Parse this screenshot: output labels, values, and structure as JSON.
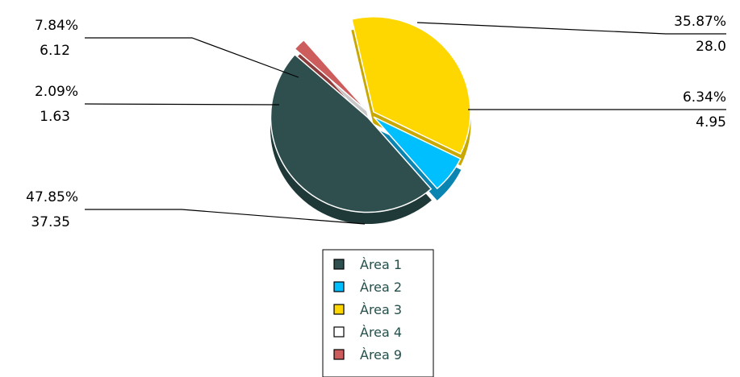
{
  "chart_data": {
    "type": "pie",
    "title": "",
    "style": "3d-exploded",
    "legend_position": "bottom",
    "slices": [
      {
        "name": "Àrea 1",
        "value": 37.35,
        "percent": "47.85%",
        "value_label": "37.35",
        "color": "#2f4f4f",
        "dark": "#1f3838"
      },
      {
        "name": "Àrea 2",
        "value": 4.95,
        "percent": "6.34%",
        "value_label": "4.95",
        "color": "#00bfff",
        "dark": "#0a84b0"
      },
      {
        "name": "Àrea 3",
        "value": 28.0,
        "percent": "35.87%",
        "value_label": "28.0",
        "color": "#ffd700",
        "dark": "#c9a800"
      },
      {
        "name": "Àrea 4",
        "value": 6.12,
        "percent": "7.84%",
        "value_label": "6.12",
        "color": "#ffffff",
        "dark": "#c8c8c8"
      },
      {
        "name": "Àrea 9",
        "value": 1.63,
        "percent": "2.09%",
        "value_label": "1.63",
        "color": "#cd5c5c",
        "dark": "#8e3b3b"
      }
    ]
  }
}
